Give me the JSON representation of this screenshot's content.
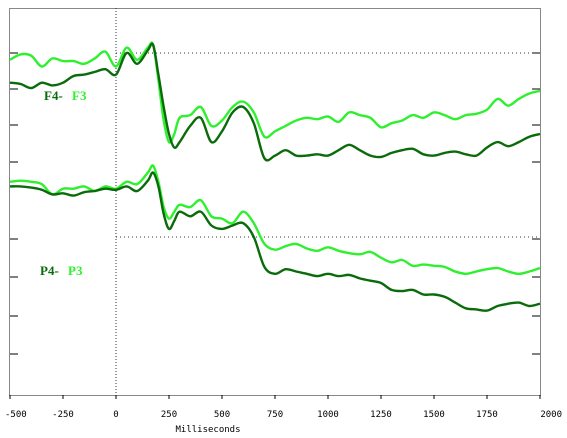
{
  "chart_data": {
    "type": "line",
    "xlabel": "Milliseconds",
    "xlim": [
      -500,
      2000
    ],
    "x_ticks": [
      -500,
      -250,
      0,
      250,
      500,
      750,
      1000,
      1250,
      1500,
      1750,
      2000
    ],
    "x_tick_labels": [
      "-500",
      "-250",
      "0",
      "250",
      "500",
      "750",
      "1000",
      "1250",
      "1500",
      "1750",
      "2000"
    ],
    "colors": {
      "dark": "#0a6b0a",
      "light": "#2ef02e"
    },
    "panels": [
      {
        "label_dark": "F4-",
        "label_light": "F3",
        "series": [
          {
            "color": "light",
            "x": [
              -500,
              -450,
              -400,
              -350,
              -300,
              -250,
              -200,
              -150,
              -100,
              -50,
              0,
              50,
              100,
              150,
              175,
              200,
              225,
              250,
              275,
              300,
              350,
              400,
              450,
              500,
              550,
              600,
              650,
              700,
              750,
              800,
              850,
              900,
              950,
              1000,
              1050,
              1100,
              1150,
              1200,
              1250,
              1300,
              1350,
              1400,
              1450,
              1500,
              1550,
              1600,
              1650,
              1700,
              1750,
              1800,
              1850,
              1900,
              1950,
              2000
            ],
            "y": [
              -0.25,
              -0.05,
              -0.1,
              -0.5,
              -0.2,
              -0.3,
              -0.3,
              -0.4,
              -0.2,
              0.05,
              -0.5,
              0.2,
              -0.25,
              0.2,
              0.3,
              -1.0,
              -2.5,
              -3.3,
              -3.0,
              -2.4,
              -2.3,
              -2.0,
              -2.7,
              -2.5,
              -2.0,
              -1.8,
              -2.2,
              -3.1,
              -2.9,
              -2.7,
              -2.5,
              -2.4,
              -2.45,
              -2.35,
              -2.55,
              -2.2,
              -2.3,
              -2.4,
              -2.75,
              -2.6,
              -2.5,
              -2.3,
              -2.4,
              -2.2,
              -2.3,
              -2.45,
              -2.3,
              -2.25,
              -2.1,
              -1.7,
              -1.95,
              -1.7,
              -1.5,
              -1.4
            ]
          },
          {
            "color": "dark",
            "x": [
              -500,
              -450,
              -400,
              -350,
              -300,
              -250,
              -200,
              -150,
              -100,
              -50,
              0,
              50,
              100,
              150,
              175,
              200,
              225,
              250,
              275,
              300,
              350,
              400,
              450,
              500,
              550,
              600,
              650,
              700,
              750,
              800,
              850,
              900,
              950,
              1000,
              1050,
              1100,
              1150,
              1200,
              1250,
              1300,
              1350,
              1400,
              1450,
              1500,
              1550,
              1600,
              1650,
              1700,
              1750,
              1800,
              1850,
              1900,
              1950,
              2000
            ],
            "y": [
              -1.1,
              -1.15,
              -1.3,
              -1.1,
              -1.2,
              -1.1,
              -0.85,
              -0.8,
              -0.7,
              -0.6,
              -0.8,
              0.0,
              -0.4,
              0.1,
              0.3,
              -0.8,
              -2.0,
              -3.0,
              -3.5,
              -3.3,
              -2.7,
              -2.4,
              -3.3,
              -2.9,
              -2.2,
              -2.0,
              -2.6,
              -3.9,
              -3.8,
              -3.6,
              -3.8,
              -3.8,
              -3.75,
              -3.8,
              -3.6,
              -3.4,
              -3.6,
              -3.8,
              -3.85,
              -3.7,
              -3.6,
              -3.55,
              -3.75,
              -3.8,
              -3.7,
              -3.65,
              -3.75,
              -3.8,
              -3.5,
              -3.3,
              -3.45,
              -3.3,
              -3.1,
              -3.0
            ]
          }
        ]
      },
      {
        "label_dark": "P4-",
        "label_light": "P3",
        "series": [
          {
            "color": "light",
            "x": [
              -500,
              -450,
              -400,
              -350,
              -300,
              -250,
              -200,
              -150,
              -100,
              -50,
              0,
              50,
              100,
              150,
              175,
              200,
              225,
              250,
              275,
              300,
              350,
              400,
              450,
              500,
              550,
              600,
              650,
              700,
              750,
              800,
              850,
              900,
              950,
              1000,
              1050,
              1100,
              1150,
              1200,
              1250,
              1300,
              1350,
              1400,
              1450,
              1500,
              1550,
              1600,
              1650,
              1700,
              1750,
              1800,
              1850,
              1900,
              1950,
              2000
            ],
            "y": [
              2.4,
              2.45,
              2.4,
              2.3,
              1.85,
              2.1,
              2.1,
              2.2,
              2.0,
              2.2,
              2.1,
              2.4,
              2.3,
              2.8,
              3.1,
              2.4,
              1.3,
              0.8,
              1.1,
              1.4,
              1.3,
              1.6,
              0.9,
              0.8,
              0.6,
              1.1,
              0.6,
              -0.3,
              -0.55,
              -0.4,
              -0.3,
              -0.5,
              -0.6,
              -0.45,
              -0.6,
              -0.7,
              -0.75,
              -0.65,
              -0.9,
              -1.1,
              -1.0,
              -1.25,
              -1.2,
              -1.25,
              -1.3,
              -1.5,
              -1.6,
              -1.5,
              -1.4,
              -1.35,
              -1.5,
              -1.6,
              -1.5,
              -1.35
            ]
          },
          {
            "color": "dark",
            "x": [
              -500,
              -450,
              -400,
              -350,
              -300,
              -250,
              -200,
              -150,
              -100,
              -50,
              0,
              50,
              100,
              150,
              175,
              200,
              225,
              250,
              275,
              300,
              350,
              400,
              450,
              500,
              550,
              600,
              650,
              700,
              750,
              800,
              850,
              900,
              950,
              1000,
              1050,
              1100,
              1150,
              1200,
              1250,
              1300,
              1350,
              1400,
              1450,
              1500,
              1550,
              1600,
              1650,
              1700,
              1750,
              1800,
              1850,
              1900,
              1950,
              2000
            ],
            "y": [
              2.2,
              2.2,
              2.15,
              2.05,
              1.85,
              1.9,
              1.8,
              1.95,
              2.0,
              2.1,
              2.05,
              2.2,
              2.0,
              2.45,
              2.8,
              2.2,
              1.0,
              0.35,
              0.7,
              1.1,
              0.9,
              1.1,
              0.5,
              0.35,
              0.5,
              0.6,
              0.0,
              -1.3,
              -1.6,
              -1.4,
              -1.5,
              -1.6,
              -1.7,
              -1.6,
              -1.7,
              -1.65,
              -1.8,
              -1.9,
              -2.0,
              -2.3,
              -2.35,
              -2.3,
              -2.5,
              -2.5,
              -2.6,
              -2.85,
              -3.1,
              -3.15,
              -3.2,
              -3.0,
              -2.9,
              -2.85,
              -3.0,
              -2.9
            ]
          }
        ]
      }
    ]
  }
}
